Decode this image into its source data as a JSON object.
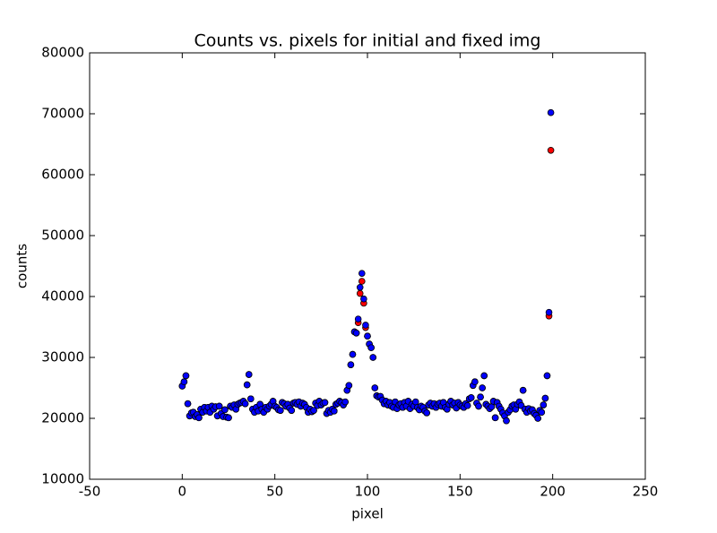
{
  "chart_data": {
    "type": "scatter",
    "title": "Counts vs. pixels for initial and fixed img",
    "x_label": "pixel",
    "y_label": "counts",
    "x": [
      0,
      1,
      2,
      3,
      4,
      5,
      6,
      7,
      8,
      9,
      10,
      11,
      12,
      13,
      14,
      15,
      16,
      17,
      18,
      19,
      20,
      21,
      22,
      23,
      24,
      25,
      26,
      27,
      28,
      29,
      30,
      31,
      32,
      33,
      34,
      35,
      36,
      37,
      38,
      39,
      40,
      41,
      42,
      43,
      44,
      45,
      46,
      47,
      48,
      49,
      50,
      51,
      52,
      53,
      54,
      55,
      56,
      57,
      58,
      59,
      60,
      61,
      62,
      63,
      64,
      65,
      66,
      67,
      68,
      69,
      70,
      71,
      72,
      73,
      74,
      75,
      76,
      77,
      78,
      79,
      80,
      81,
      82,
      83,
      84,
      85,
      86,
      87,
      88,
      89,
      90,
      91,
      92,
      93,
      94,
      95,
      96,
      97,
      98,
      99,
      100,
      101,
      102,
      103,
      104,
      105,
      106,
      107,
      108,
      109,
      110,
      111,
      112,
      113,
      114,
      115,
      116,
      117,
      118,
      119,
      120,
      121,
      122,
      123,
      124,
      125,
      126,
      127,
      128,
      129,
      130,
      131,
      132,
      133,
      134,
      135,
      136,
      137,
      138,
      139,
      140,
      141,
      142,
      143,
      144,
      145,
      146,
      147,
      148,
      149,
      150,
      151,
      152,
      153,
      154,
      155,
      156,
      157,
      158,
      159,
      160,
      161,
      162,
      163,
      164,
      165,
      166,
      167,
      168,
      169,
      170,
      171,
      172,
      173,
      174,
      175,
      176,
      177,
      178,
      179,
      180,
      181,
      182,
      183,
      184,
      185,
      186,
      187,
      188,
      189,
      190,
      191,
      192,
      193,
      194,
      195,
      196,
      197,
      198,
      199
    ],
    "series": [
      {
        "color": "#ff0000",
        "values": [
          25300,
          26000,
          27000,
          22400,
          20400,
          20900,
          21000,
          20300,
          20600,
          20100,
          21500,
          21000,
          21800,
          21200,
          21800,
          21000,
          22000,
          21500,
          21900,
          20400,
          22000,
          20800,
          20300,
          21400,
          20200,
          20100,
          22000,
          21800,
          22200,
          21500,
          22300,
          22500,
          22600,
          22800,
          22400,
          25500,
          27200,
          23200,
          21500,
          21000,
          21800,
          21200,
          22300,
          21500,
          21000,
          21800,
          21500,
          22000,
          22300,
          22800,
          22000,
          21800,
          21400,
          21300,
          22600,
          22400,
          22000,
          22300,
          21700,
          21300,
          22500,
          22600,
          22300,
          22700,
          22000,
          22500,
          22300,
          21800,
          21000,
          21500,
          21100,
          21300,
          22500,
          22100,
          22800,
          22200,
          22500,
          22600,
          20800,
          21300,
          21000,
          21500,
          21200,
          22300,
          22500,
          22800,
          22600,
          22200,
          22700,
          24600,
          25400,
          28800,
          30500,
          34200,
          34000,
          35700,
          40500,
          42500,
          38900,
          34900,
          33500,
          32200,
          31600,
          30000,
          25000,
          23700,
          23500,
          23600,
          23000,
          22400,
          22800,
          22200,
          22600,
          22000,
          21800,
          22700,
          21600,
          22200,
          22400,
          21800,
          22600,
          22000,
          22800,
          21600,
          22300,
          22000,
          22700,
          21800,
          21400,
          22000,
          21800,
          21200,
          20900,
          22200,
          22500,
          22000,
          22400,
          21800,
          22300,
          22500,
          22000,
          22600,
          21800,
          21500,
          22300,
          22800,
          22200,
          22500,
          21700,
          22600,
          22200,
          22000,
          21800,
          22400,
          22100,
          23200,
          23400,
          25400,
          26000,
          22500,
          22000,
          23500,
          25000,
          27000,
          22300,
          22000,
          21600,
          21900,
          22800,
          20100,
          22600,
          22000,
          21500,
          20900,
          20400,
          19600,
          21000,
          21400,
          22000,
          22200,
          21500,
          22300,
          22700,
          22100,
          24600,
          21500,
          21000,
          21600,
          21200,
          21400,
          20800,
          20500,
          20000,
          21300,
          21000,
          22200,
          23300,
          27000,
          36800,
          64000
        ]
      },
      {
        "color": "#0000ff",
        "values": [
          25300,
          26000,
          27000,
          22400,
          20400,
          20900,
          21000,
          20300,
          20600,
          20100,
          21500,
          21000,
          21800,
          21200,
          21800,
          21000,
          22000,
          21500,
          21900,
          20400,
          22000,
          20800,
          20300,
          21400,
          20200,
          20100,
          22000,
          21800,
          22200,
          21500,
          22300,
          22500,
          22600,
          22800,
          22400,
          25500,
          27200,
          23200,
          21500,
          21000,
          21800,
          21200,
          22300,
          21500,
          21000,
          21800,
          21500,
          22000,
          22300,
          22800,
          22000,
          21800,
          21400,
          21300,
          22600,
          22400,
          22000,
          22300,
          21700,
          21300,
          22500,
          22600,
          22300,
          22700,
          22000,
          22500,
          22300,
          21800,
          21000,
          21500,
          21100,
          21300,
          22500,
          22100,
          22800,
          22200,
          22500,
          22600,
          20800,
          21300,
          21000,
          21500,
          21200,
          22300,
          22500,
          22800,
          22600,
          22200,
          22700,
          24600,
          25400,
          28800,
          30500,
          34200,
          34000,
          36300,
          41500,
          43800,
          39600,
          35300,
          33500,
          32200,
          31600,
          30000,
          25000,
          23700,
          23500,
          23600,
          23000,
          22400,
          22800,
          22200,
          22600,
          22000,
          21800,
          22700,
          21600,
          22200,
          22400,
          21800,
          22600,
          22000,
          22800,
          21600,
          22300,
          22000,
          22700,
          21800,
          21400,
          22000,
          21800,
          21200,
          20900,
          22200,
          22500,
          22000,
          22400,
          21800,
          22300,
          22500,
          22000,
          22600,
          21800,
          21500,
          22300,
          22800,
          22200,
          22500,
          21700,
          22600,
          22200,
          22000,
          21800,
          22400,
          22100,
          23200,
          23400,
          25400,
          26000,
          22500,
          22000,
          23500,
          25000,
          27000,
          22300,
          22000,
          21600,
          21900,
          22800,
          20100,
          22600,
          22000,
          21500,
          20900,
          20400,
          19600,
          21000,
          21400,
          22000,
          22200,
          21500,
          22300,
          22700,
          22100,
          24600,
          21500,
          21000,
          21600,
          21200,
          21400,
          20800,
          20500,
          20000,
          21300,
          21000,
          22200,
          23300,
          27000,
          37400,
          70200
        ]
      }
    ],
    "xlim": [
      -50,
      250
    ],
    "xticks": [
      -50,
      0,
      50,
      100,
      150,
      200,
      250
    ],
    "ylim": [
      10000,
      80000
    ],
    "yticks": [
      10000,
      20000,
      30000,
      40000,
      50000,
      60000,
      70000,
      80000
    ]
  }
}
